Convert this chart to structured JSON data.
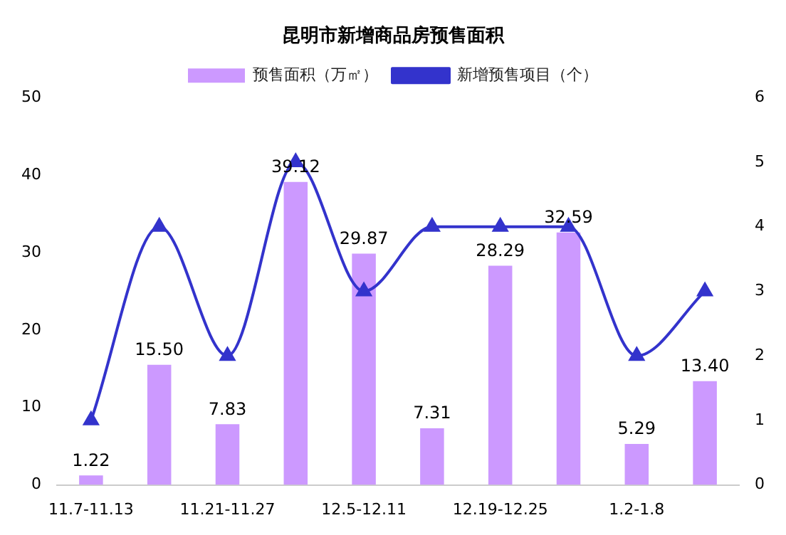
{
  "chart_data": {
    "type": "bar",
    "title": "昆明市新增商品房预售面积",
    "categories": [
      "11.7-11.13",
      null,
      "11.21-11.27",
      null,
      "12.5-12.11",
      null,
      "12.19-12.25",
      null,
      "1.2-1.8",
      null
    ],
    "series": [
      {
        "name": "预售面积（万㎡）",
        "color": "#cc99ff",
        "values": [
          1.22,
          15.5,
          7.83,
          39.12,
          29.87,
          7.31,
          28.29,
          32.59,
          5.29,
          13.4
        ],
        "value_labels": [
          "1.22",
          "15.50",
          "7.83",
          "39.12",
          "29.87",
          "7.31",
          "28.29",
          "32.59",
          "5.29",
          "13.40"
        ]
      },
      {
        "name": "新增预售项目（个）",
        "type": "line",
        "axis": "y2",
        "color": "#3333cc",
        "marker": "triangle",
        "values": [
          1,
          4,
          2,
          5,
          3,
          4,
          4,
          4,
          2,
          3
        ]
      }
    ],
    "ylim": [
      0,
      50
    ],
    "yticks": [
      0,
      10,
      20,
      30,
      40,
      50
    ],
    "y2lim": [
      0,
      6
    ],
    "y2ticks": [
      0,
      1,
      2,
      3,
      4,
      5,
      6
    ],
    "grid": false,
    "legend": "top"
  }
}
